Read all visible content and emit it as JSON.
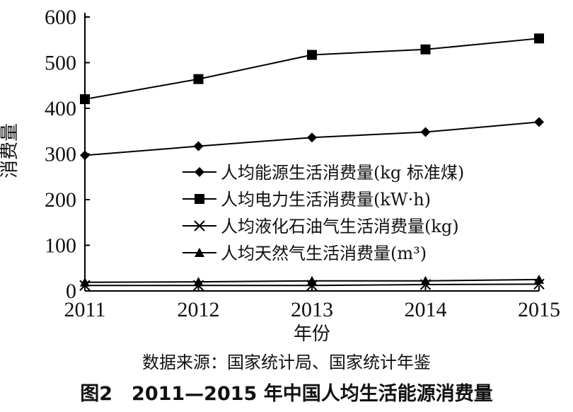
{
  "chart_data": {
    "type": "line",
    "categories": [
      "2011",
      "2012",
      "2013",
      "2014",
      "2015"
    ],
    "x_axis_label": "年份",
    "y_axis_label": "消费量",
    "y_ticks": [
      "0",
      "100",
      "200",
      "300",
      "400",
      "500",
      "600"
    ],
    "ylim": [
      0,
      600
    ],
    "grid": false,
    "legend_position": "center-right",
    "series": [
      {
        "name": "人均能源生活消费量(kg 标准煤)",
        "marker": "diamond",
        "values": [
          297,
          317,
          336,
          348,
          370
        ]
      },
      {
        "name": "人均电力生活消费量(kW·h)",
        "marker": "square",
        "values": [
          420,
          464,
          517,
          529,
          553
        ]
      },
      {
        "name": "人均液化石油气生活消费量(kg)",
        "marker": "x",
        "values": [
          12,
          12,
          12,
          14,
          15
        ]
      },
      {
        "name": "人均天然气生活消费量(m³)",
        "marker": "triangle",
        "values": [
          19,
          20,
          22,
          22,
          25
        ]
      }
    ],
    "line_color": "#000000"
  },
  "source_text": "数据来源：国家统计局、国家统计年鉴",
  "caption": "图2　2011—2015 年中国人均生活能源消费量"
}
